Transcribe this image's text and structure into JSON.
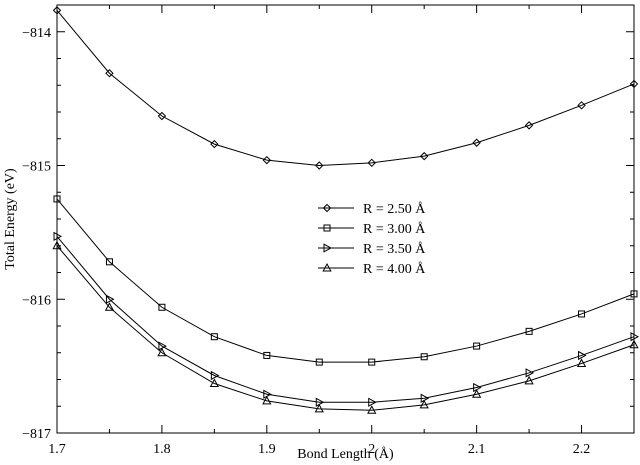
{
  "chart_data": {
    "type": "line",
    "title": "",
    "xlabel": "Bond Length (Å)",
    "ylabel": "Total Energy (eV)",
    "xlim": [
      1.7,
      2.25
    ],
    "ylim": [
      -817,
      -813.8
    ],
    "grid": false,
    "legend_position": "center",
    "x": [
      1.7,
      1.75,
      1.8,
      1.85,
      1.9,
      1.95,
      2.0,
      2.05,
      2.1,
      2.15,
      2.2,
      2.25
    ],
    "xticks": [
      {
        "value": 1.7,
        "label": "1.7"
      },
      {
        "value": 1.8,
        "label": "1.8"
      },
      {
        "value": 1.9,
        "label": "1.9"
      },
      {
        "value": 2.0,
        "label": "2"
      },
      {
        "value": 2.1,
        "label": "2.1"
      },
      {
        "value": 2.2,
        "label": "2.2"
      }
    ],
    "yticks": [
      {
        "value": -817,
        "label": "-817"
      },
      {
        "value": -816,
        "label": "-816"
      },
      {
        "value": -815,
        "label": "-815"
      },
      {
        "value": -814,
        "label": "-814"
      }
    ],
    "series": [
      {
        "name": "R = 2.50 Å",
        "marker": "diamond",
        "values": [
          -813.84,
          -814.31,
          -814.63,
          -814.84,
          -814.96,
          -815.0,
          -814.98,
          -814.93,
          -814.83,
          -814.7,
          -814.55,
          -814.39
        ]
      },
      {
        "name": "R = 3.00 Å",
        "marker": "square",
        "values": [
          -815.25,
          -815.72,
          -816.06,
          -816.28,
          -816.42,
          -816.47,
          -816.47,
          -816.43,
          -816.35,
          -816.24,
          -816.11,
          -815.96
        ]
      },
      {
        "name": "R = 3.50 Å",
        "marker": "triangle-right",
        "values": [
          -815.53,
          -816.0,
          -816.35,
          -816.57,
          -816.71,
          -816.77,
          -816.77,
          -816.74,
          -816.66,
          -816.55,
          -816.42,
          -816.28
        ]
      },
      {
        "name": "R = 4.00 Å",
        "marker": "triangle-up",
        "values": [
          -815.6,
          -816.06,
          -816.4,
          -816.63,
          -816.76,
          -816.82,
          -816.83,
          -816.79,
          -816.71,
          -816.61,
          -816.48,
          -816.34
        ]
      }
    ]
  }
}
